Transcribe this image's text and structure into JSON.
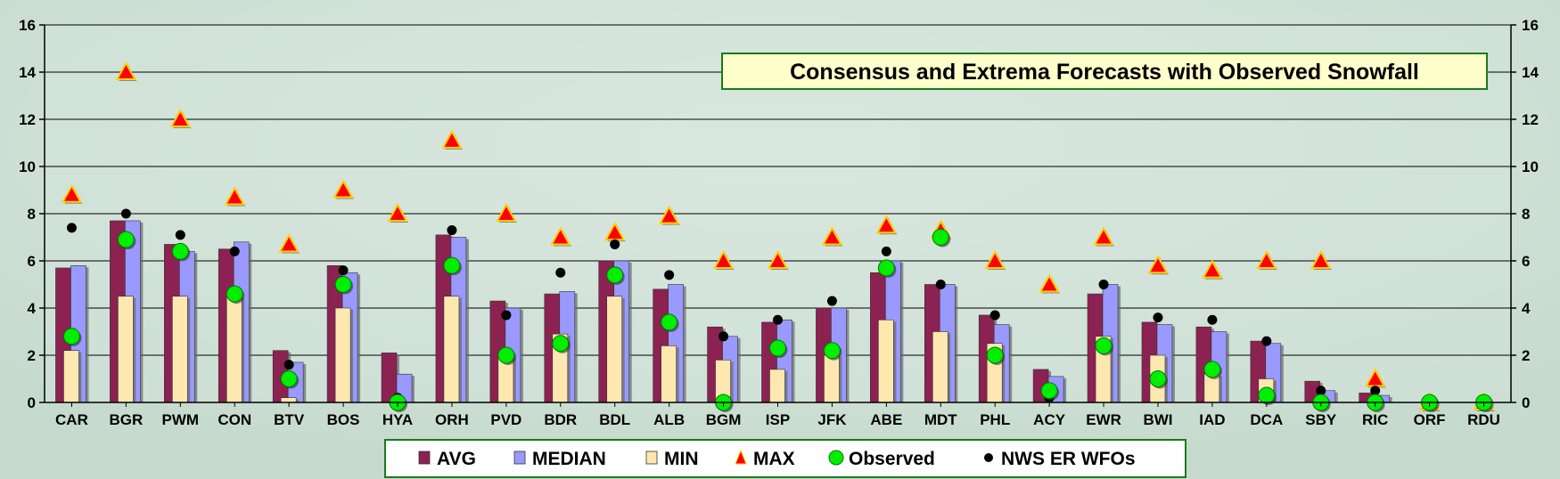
{
  "chart_data": {
    "type": "bar",
    "title": "Consensus and Extrema Forecasts with Observed Snowfall",
    "xlabel": "",
    "ylabel": "",
    "ylim": [
      0,
      16
    ],
    "yticks": [
      0,
      2,
      4,
      6,
      8,
      10,
      12,
      14,
      16
    ],
    "ytick_labels": [
      "0",
      "2",
      "4",
      "6",
      "8",
      "10",
      "12",
      "14",
      "16"
    ],
    "grid": true,
    "legend_position": "bottom",
    "categories": [
      "CAR",
      "BGR",
      "PWM",
      "CON",
      "BTV",
      "BOS",
      "HYA",
      "ORH",
      "PVD",
      "BDR",
      "BDL",
      "ALB",
      "BGM",
      "ISP",
      "JFK",
      "ABE",
      "MDT",
      "PHL",
      "ACY",
      "EWR",
      "BWI",
      "IAD",
      "DCA",
      "SBY",
      "RIC",
      "ORF",
      "RDU"
    ],
    "series": [
      {
        "name": "AVG",
        "kind": "bar",
        "color": "#8b2252",
        "values": [
          5.7,
          7.7,
          6.7,
          6.5,
          2.2,
          5.8,
          2.1,
          7.1,
          4.3,
          4.6,
          6.0,
          4.8,
          3.2,
          3.4,
          4.0,
          5.5,
          5.0,
          3.7,
          1.4,
          4.6,
          3.4,
          3.2,
          2.6,
          0.9,
          0.4,
          0.0,
          0.0
        ]
      },
      {
        "name": "MEDIAN",
        "kind": "bar",
        "color": "#9999ff",
        "values": [
          5.8,
          7.7,
          6.4,
          6.8,
          1.7,
          5.5,
          1.2,
          7.0,
          4.0,
          4.7,
          6.0,
          5.0,
          2.8,
          3.5,
          4.0,
          6.0,
          5.0,
          3.3,
          1.1,
          5.0,
          3.3,
          3.0,
          2.5,
          0.5,
          0.3,
          0.0,
          0.0
        ]
      },
      {
        "name": "MIN",
        "kind": "bar",
        "color": "#ffe8b0",
        "values": [
          2.2,
          4.5,
          4.5,
          4.5,
          0.2,
          4.0,
          0.0,
          4.5,
          2.0,
          2.9,
          4.5,
          2.4,
          1.8,
          1.4,
          2.0,
          3.5,
          3.0,
          2.5,
          0.0,
          2.8,
          2.0,
          1.2,
          1.0,
          0.0,
          0.0,
          0.0,
          0.0
        ]
      },
      {
        "name": "MAX",
        "kind": "marker",
        "color": "#ff0000",
        "values": [
          8.8,
          14.0,
          12.0,
          8.7,
          6.7,
          9.0,
          8.0,
          11.1,
          8.0,
          7.0,
          7.2,
          7.9,
          6.0,
          6.0,
          7.0,
          7.5,
          7.3,
          6.0,
          5.0,
          7.0,
          5.8,
          5.6,
          6.0,
          6.0,
          1.0,
          0.0,
          0.0
        ]
      },
      {
        "name": "Observed",
        "kind": "marker",
        "color": "#00ee00",
        "values": [
          2.8,
          6.9,
          6.4,
          4.6,
          1.0,
          5.0,
          0.0,
          5.8,
          2.0,
          2.5,
          5.4,
          3.4,
          0.0,
          2.3,
          2.2,
          5.7,
          7.0,
          2.0,
          0.5,
          2.4,
          1.0,
          1.4,
          0.3,
          0.0,
          0.0,
          0.0,
          0.0
        ]
      },
      {
        "name": "NWS ER WFOs",
        "kind": "marker",
        "color": "#000000",
        "values": [
          7.4,
          8.0,
          7.1,
          6.4,
          1.6,
          5.6,
          0.2,
          7.3,
          3.7,
          5.5,
          6.7,
          5.4,
          2.8,
          3.5,
          4.3,
          6.4,
          5.0,
          3.7,
          0.2,
          5.0,
          3.6,
          3.5,
          2.6,
          0.5,
          0.5,
          0.0,
          0.0
        ]
      }
    ]
  }
}
